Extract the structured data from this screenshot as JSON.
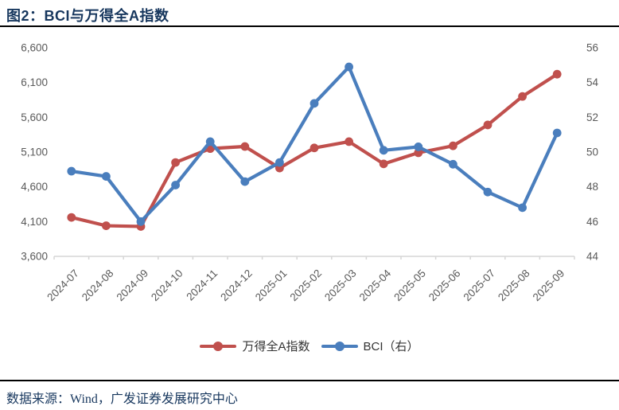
{
  "title": "图2：BCI与万得全A指数",
  "footer": {
    "source": "数据来源：Wind，广发证券发展研究中心"
  },
  "colors": {
    "title_navy": "#17375E",
    "wind_red": "#C0504D",
    "bci_blue": "#4A7EBD",
    "axis_text_gray": "#595959",
    "axis_line_gray": "#D6D6D6",
    "rule_black": "#000000"
  },
  "chart_data": {
    "type": "line",
    "title": "图2：BCI与万得全A指数",
    "categories": [
      "2024-07",
      "2024-08",
      "2024-09",
      "2024-10",
      "2024-11",
      "2024-12",
      "2025-01",
      "2025-02",
      "2025-03",
      "2025-04",
      "2025-05",
      "2025-06",
      "2025-07",
      "2025-08",
      "2025-09"
    ],
    "series": [
      {
        "name": "万得全A指数",
        "axis": "left",
        "color": "#C0504D",
        "marker": "circle",
        "values": [
          4160,
          4040,
          4030,
          4950,
          5150,
          5180,
          4870,
          5160,
          5250,
          4930,
          5090,
          5190,
          5490,
          5900,
          6220
        ]
      },
      {
        "name": "BCI（右）",
        "axis": "right",
        "color": "#4A7EBD",
        "marker": "circle",
        "values": [
          48.9,
          48.6,
          46.0,
          48.1,
          50.6,
          48.3,
          49.4,
          52.8,
          54.9,
          50.1,
          50.3,
          49.3,
          47.7,
          46.8,
          51.1
        ]
      }
    ],
    "left_axis": {
      "min": 3600,
      "max": 6600,
      "tick_labels": [
        "3,600",
        "4,100",
        "4,600",
        "5,100",
        "5,600",
        "6,100",
        "6,600"
      ]
    },
    "right_axis": {
      "min": 44,
      "max": 56,
      "tick_labels": [
        "44",
        "46",
        "48",
        "50",
        "52",
        "54",
        "56"
      ]
    },
    "grid": false,
    "legend_position": "bottom",
    "x_tick_rotation": -45
  }
}
